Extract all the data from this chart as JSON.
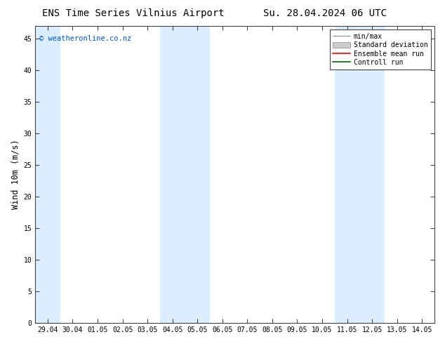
{
  "title_left": "ENS Time Series Vilnius Airport",
  "title_right": "Su. 28.04.2024 06 UTC",
  "ylabel": "Wind 10m (m/s)",
  "watermark": "© weatheronline.co.nz",
  "watermark_color": "#0055cc",
  "xlim": [
    -0.5,
    15.5
  ],
  "ylim": [
    0,
    47
  ],
  "yticks": [
    0,
    5,
    10,
    15,
    20,
    25,
    30,
    35,
    40,
    45
  ],
  "xtick_labels": [
    "29.04",
    "30.04",
    "01.05",
    "02.05",
    "03.05",
    "04.05",
    "05.05",
    "06.05",
    "07.05",
    "08.05",
    "09.05",
    "10.05",
    "11.05",
    "12.05",
    "13.05",
    "14.05"
  ],
  "background_color": "#ffffff",
  "plot_bg_color": "#ffffff",
  "shaded_color": "#daeeff",
  "shaded_bands": [
    [
      -0.5,
      0.5
    ],
    [
      4.5,
      5.5
    ],
    [
      5.5,
      6.5
    ],
    [
      11.5,
      12.5
    ],
    [
      12.5,
      13.5
    ]
  ],
  "legend_items": [
    {
      "label": "min/max",
      "color": "#aaaaaa",
      "type": "errorbar"
    },
    {
      "label": "Standard deviation",
      "color": "#cccccc",
      "type": "bar"
    },
    {
      "label": "Ensemble mean run",
      "color": "#ff0000",
      "type": "line"
    },
    {
      "label": "Controll run",
      "color": "#006600",
      "type": "line"
    }
  ],
  "title_fontsize": 10,
  "tick_fontsize": 7,
  "ylabel_fontsize": 8.5,
  "legend_fontsize": 7,
  "watermark_fontsize": 7.5
}
